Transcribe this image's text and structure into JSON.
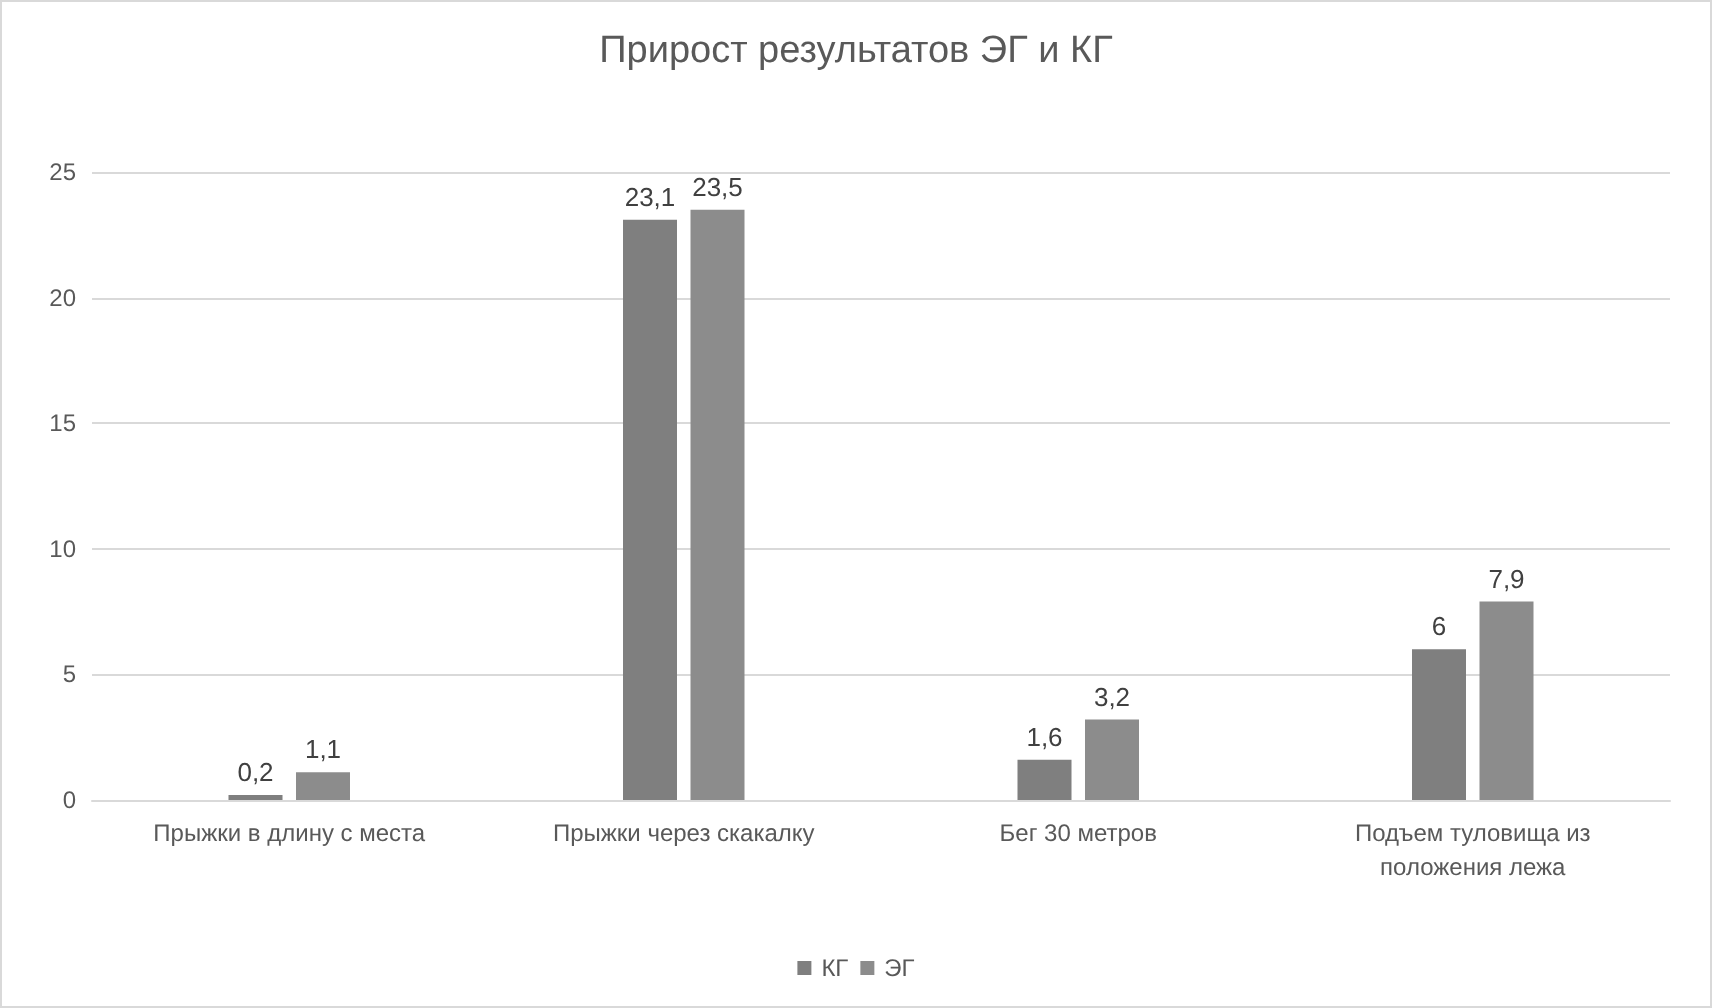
{
  "chart_data": {
    "type": "bar",
    "title": "Прирост результатов ЭГ и КГ",
    "categories": [
      "Прыжки в длину с места",
      "Прыжки через скакалку",
      "Бег 30 метров",
      "Подъем туловища из\nположения лежа"
    ],
    "series": [
      {
        "name": "КГ",
        "color": "#7f7f7f",
        "values": [
          0.2,
          23.1,
          1.6,
          6
        ],
        "value_labels": [
          "0,2",
          "23,1",
          "1,6",
          "6"
        ]
      },
      {
        "name": "ЭГ",
        "color": "#8c8c8c",
        "values": [
          1.1,
          23.5,
          3.2,
          7.9
        ],
        "value_labels": [
          "1,1",
          "23,5",
          "3,2",
          "7,9"
        ]
      }
    ],
    "ylim": [
      0,
      25
    ],
    "yticks": [
      0,
      5,
      10,
      15,
      20,
      25
    ],
    "grid": "y",
    "legend": "bottom"
  }
}
